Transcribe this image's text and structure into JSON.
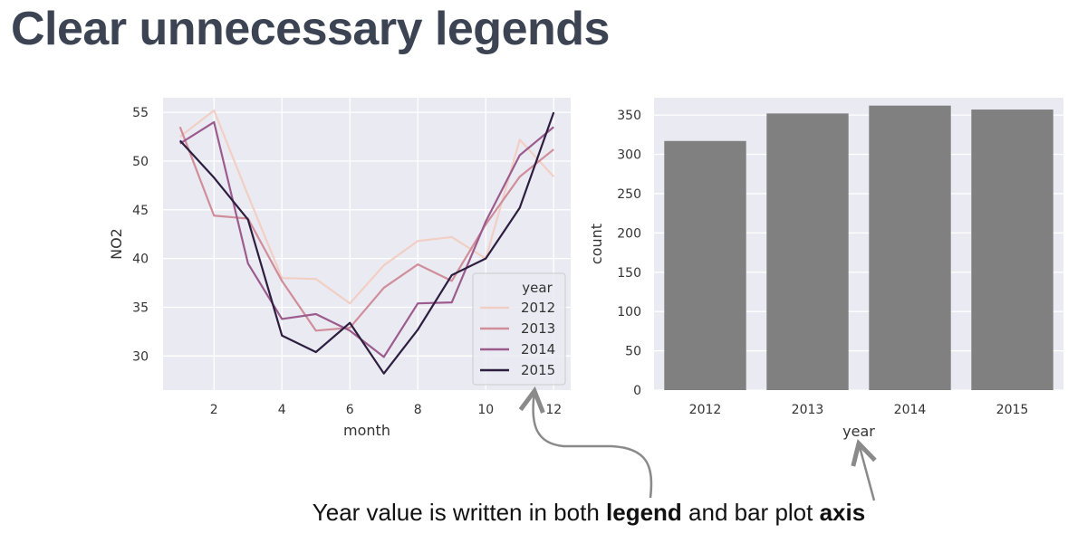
{
  "title": "Clear unnecessary legends",
  "caption": {
    "part1": "Year value is written in both ",
    "bold1": "legend",
    "part2": " and bar plot ",
    "bold2": "axis"
  },
  "chart_data": [
    {
      "type": "line",
      "xlabel": "month",
      "ylabel": "NO2",
      "xlim": [
        0.5,
        12.5
      ],
      "ylim": [
        26.5,
        56.5
      ],
      "xticks": [
        2,
        4,
        6,
        8,
        10,
        12
      ],
      "yticks": [
        30,
        35,
        40,
        45,
        50,
        55
      ],
      "grid": true,
      "legend": {
        "title": "year",
        "placement": "bottom-right"
      },
      "x": [
        1,
        2,
        3,
        4,
        5,
        6,
        7,
        8,
        9,
        10,
        11,
        12
      ],
      "series": [
        {
          "name": "2012",
          "color": "#f2cfc5",
          "values": [
            52.5,
            55.2,
            46.5,
            38.0,
            37.9,
            35.4,
            39.3,
            41.8,
            42.2,
            40.0,
            52.2,
            48.4
          ]
        },
        {
          "name": "2013",
          "color": "#d08d9a",
          "values": [
            53.5,
            44.4,
            44.1,
            37.7,
            32.6,
            32.9,
            37.0,
            39.4,
            37.7,
            43.5,
            48.4,
            51.2
          ]
        },
        {
          "name": "2014",
          "color": "#9b5c8d",
          "values": [
            51.8,
            54.0,
            39.5,
            33.8,
            34.3,
            32.6,
            29.9,
            35.4,
            35.5,
            43.8,
            50.6,
            53.5
          ]
        },
        {
          "name": "2015",
          "color": "#2d1e3f",
          "values": [
            52.1,
            48.3,
            44.0,
            32.1,
            30.4,
            33.4,
            28.2,
            32.7,
            38.3,
            40.0,
            45.2,
            55.0
          ]
        }
      ]
    },
    {
      "type": "bar",
      "xlabel": "year",
      "ylabel": "count",
      "ylim": [
        0,
        372
      ],
      "yticks": [
        0,
        50,
        100,
        150,
        200,
        250,
        300,
        350
      ],
      "grid": true,
      "bar_color": "#808080",
      "categories": [
        "2012",
        "2013",
        "2014",
        "2015"
      ],
      "values": [
        317,
        352,
        362,
        357
      ]
    }
  ]
}
